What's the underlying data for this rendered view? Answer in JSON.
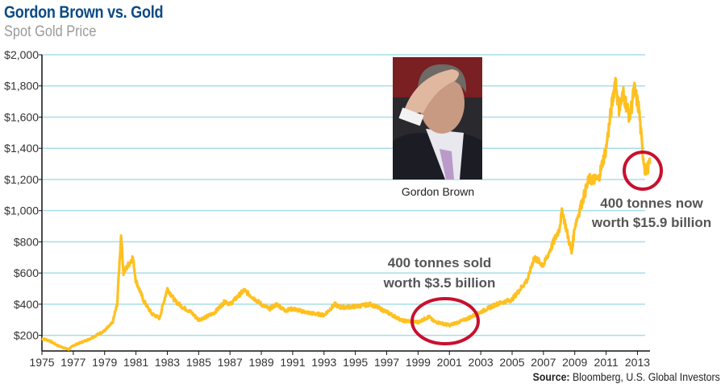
{
  "header": {
    "title": "Gordon Brown vs. Gold",
    "subtitle": "Spot Gold Price"
  },
  "photo": {
    "caption": "Gordon Brown"
  },
  "source": {
    "label": "Source:",
    "text": "Bloomberg, U.S. Global Investors"
  },
  "colors": {
    "title": "#0b4a86",
    "line": "#ffc020",
    "circle": "#c8102e",
    "grid": "#a8dde8"
  },
  "chart_data": {
    "type": "line",
    "title": "Gordon Brown vs. Gold",
    "subtitle": "Spot Gold Price",
    "xlim": [
      1975,
      2013.8
    ],
    "ylim": [
      100,
      2000
    ],
    "grid": true,
    "y_ticks": [
      200,
      400,
      600,
      800,
      1000,
      1200,
      1400,
      1600,
      1800,
      2000
    ],
    "y_tick_labels": [
      "$200",
      "$400",
      "$600",
      "$800",
      "$1,000",
      "$1,200",
      "$1,400",
      "$1,600",
      "$1,800",
      "$2,000"
    ],
    "x_ticks": [
      "1975",
      "1977",
      "1979",
      "1981",
      "1983",
      "1985",
      "1987",
      "1989",
      "1991",
      "1993",
      "1995",
      "1997",
      "1999",
      "2001",
      "2003",
      "2005",
      "2007",
      "2009",
      "2011",
      "2013"
    ],
    "series": [
      {
        "x": [
          1975.0,
          1975.5,
          1976.0,
          1976.7,
          1977.0,
          1978.0,
          1979.0,
          1979.5,
          1979.8,
          1980.05,
          1980.2,
          1980.5,
          1980.8,
          1981.0,
          1981.5,
          1982.0,
          1982.5,
          1983.0,
          1983.5,
          1984.0,
          1984.5,
          1985.0,
          1985.5,
          1986.0,
          1986.7,
          1987.0,
          1987.9,
          1988.5,
          1989.0,
          1989.5,
          1990.0,
          1990.5,
          1991.0,
          1992.0,
          1993.0,
          1993.7,
          1994.0,
          1995.0,
          1996.0,
          1997.0,
          1998.0,
          1999.0,
          1999.7,
          2000.0,
          2001.0,
          2002.0,
          2003.0,
          2004.0,
          2005.0,
          2006.0,
          2006.4,
          2007.0,
          2008.0,
          2008.2,
          2008.8,
          2009.0,
          2009.9,
          2010.5,
          2011.0,
          2011.6,
          2011.8,
          2012.1,
          2012.5,
          2012.8,
          2013.1,
          2013.3,
          2013.5,
          2013.8
        ],
        "y": [
          180,
          165,
          135,
          110,
          135,
          175,
          230,
          280,
          400,
          850,
          600,
          650,
          700,
          550,
          420,
          340,
          310,
          500,
          420,
          380,
          350,
          300,
          320,
          345,
          420,
          400,
          490,
          440,
          400,
          370,
          400,
          360,
          370,
          345,
          330,
          400,
          380,
          385,
          400,
          350,
          295,
          285,
          320,
          290,
          265,
          300,
          350,
          400,
          430,
          560,
          700,
          650,
          880,
          1000,
          730,
          900,
          1200,
          1200,
          1400,
          1850,
          1650,
          1750,
          1600,
          1780,
          1650,
          1400,
          1250,
          1300
        ]
      }
    ],
    "annotations": [
      {
        "text": [
          "400 tonnes sold",
          "worth $3.5 billion"
        ],
        "x": 2001,
        "y": 280
      },
      {
        "text": [
          "400 tonnes now",
          "worth $15.9 billion"
        ],
        "x": 2013.5,
        "y": 1250
      }
    ]
  }
}
